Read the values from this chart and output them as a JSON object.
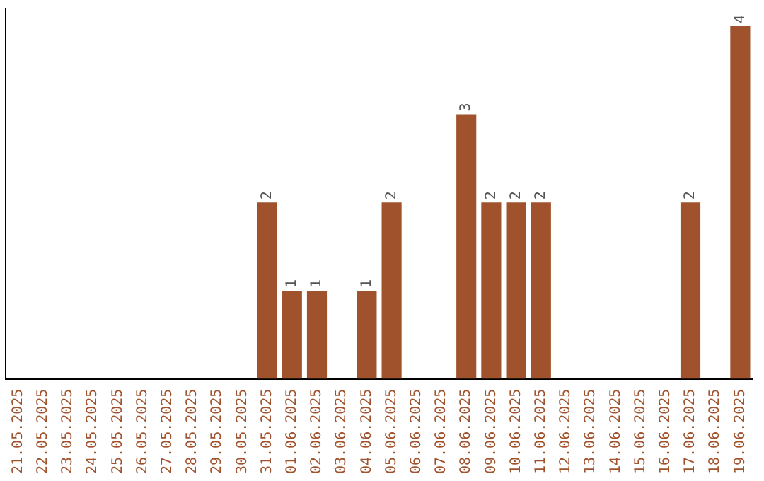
{
  "chart_data": {
    "type": "bar",
    "categories": [
      "21.05.2025",
      "22.05.2025",
      "23.05.2025",
      "24.05.2025",
      "25.05.2025",
      "26.05.2025",
      "27.05.2025",
      "28.05.2025",
      "29.05.2025",
      "30.05.2025",
      "31.05.2025",
      "01.06.2025",
      "02.06.2025",
      "03.06.2025",
      "04.06.2025",
      "05.06.2025",
      "06.06.2025",
      "07.06.2025",
      "08.06.2025",
      "09.06.2025",
      "10.06.2025",
      "11.06.2025",
      "12.06.2025",
      "13.06.2025",
      "14.06.2025",
      "15.06.2025",
      "16.06.2025",
      "17.06.2025",
      "18.06.2025",
      "19.06.2025"
    ],
    "values": [
      0,
      0,
      0,
      0,
      0,
      0,
      0,
      0,
      0,
      0,
      2,
      1,
      1,
      0,
      1,
      2,
      0,
      0,
      3,
      2,
      2,
      2,
      0,
      0,
      0,
      0,
      0,
      2,
      0,
      4
    ],
    "value_labels": [
      null,
      null,
      null,
      null,
      null,
      null,
      null,
      null,
      null,
      null,
      "2",
      "1",
      "1",
      null,
      "1",
      "2",
      null,
      null,
      "3",
      "2",
      "2",
      "2",
      null,
      null,
      null,
      null,
      null,
      "2",
      null,
      "4"
    ],
    "color": "#a0522d",
    "ylim": [
      0,
      4.2
    ],
    "tick_labels": "x",
    "grid": false,
    "legend": false
  }
}
